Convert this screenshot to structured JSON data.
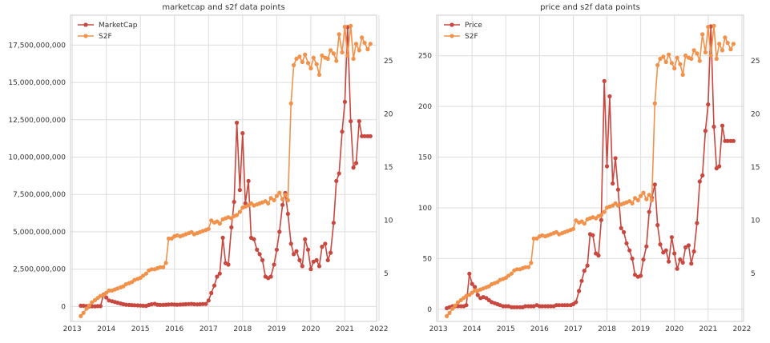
{
  "chart_data": [
    {
      "type": "line",
      "title": "marketcap and s2f data points",
      "xlabel": "",
      "ylabel": "",
      "x_ticks": [
        "2013",
        "2014",
        "2015",
        "2016",
        "2017",
        "2018",
        "2019",
        "2020",
        "2021",
        "2022"
      ],
      "y_ticks": [
        "0",
        "2,500,000,000",
        "5,000,000,000",
        "7,500,000,000",
        "10,000,000,000",
        "12,500,000,000",
        "15,000,000,000",
        "17,500,000,000"
      ],
      "y2_ticks": [
        "5",
        "10",
        "15",
        "20",
        "25"
      ],
      "xlim": [
        2012.95,
        2021.93
      ],
      "ylim": [
        -1000000000,
        19500000000
      ],
      "y2lim": [
        0.5,
        29.3
      ],
      "grid": true,
      "legend": "top-left",
      "series": [
        {
          "name": "MarketCap",
          "axis": "left",
          "color": "#c8473f",
          "x": [
            2013.25,
            2013.33,
            2013.42,
            2013.5,
            2013.58,
            2013.67,
            2013.75,
            2013.83,
            2013.92,
            2014.0,
            2014.08,
            2014.17,
            2014.25,
            2014.33,
            2014.42,
            2014.5,
            2014.58,
            2014.67,
            2014.75,
            2014.83,
            2014.92,
            2015.0,
            2015.08,
            2015.17,
            2015.25,
            2015.33,
            2015.42,
            2015.5,
            2015.58,
            2015.67,
            2015.75,
            2015.83,
            2015.92,
            2016.0,
            2016.08,
            2016.17,
            2016.25,
            2016.33,
            2016.42,
            2016.5,
            2016.58,
            2016.67,
            2016.75,
            2016.83,
            2016.92,
            2017.0,
            2017.08,
            2017.17,
            2017.25,
            2017.33,
            2017.42,
            2017.5,
            2017.58,
            2017.67,
            2017.75,
            2017.83,
            2017.92,
            2018.0,
            2018.08,
            2018.17,
            2018.25,
            2018.33,
            2018.42,
            2018.5,
            2018.58,
            2018.67,
            2018.75,
            2018.83,
            2018.92,
            2019.0,
            2019.08,
            2019.17,
            2019.25,
            2019.33,
            2019.42,
            2019.5,
            2019.58,
            2019.67,
            2019.75,
            2019.83,
            2019.92,
            2020.0,
            2020.08,
            2020.17,
            2020.25,
            2020.33,
            2020.42,
            2020.5,
            2020.58,
            2020.67,
            2020.75,
            2020.83,
            2020.92,
            2021.0,
            2021.08,
            2021.17,
            2021.25,
            2021.33,
            2021.42,
            2021.5,
            2021.58,
            2021.67,
            2021.75
          ],
          "y": [
            50000000,
            50000000,
            30000000,
            10000000,
            10000000,
            10000000,
            20000000,
            20000000,
            800000000,
            600000000,
            400000000,
            350000000,
            300000000,
            250000000,
            200000000,
            150000000,
            120000000,
            100000000,
            90000000,
            80000000,
            70000000,
            60000000,
            50000000,
            40000000,
            100000000,
            150000000,
            180000000,
            120000000,
            100000000,
            110000000,
            120000000,
            130000000,
            140000000,
            130000000,
            120000000,
            130000000,
            140000000,
            150000000,
            160000000,
            170000000,
            150000000,
            140000000,
            150000000,
            160000000,
            170000000,
            400000000,
            900000000,
            1400000000,
            2000000000,
            2200000000,
            4600000000,
            2900000000,
            2800000000,
            5300000000,
            7000000000,
            12300000000,
            7800000000,
            11600000000,
            6900000000,
            8400000000,
            4600000000,
            4500000000,
            3800000000,
            3500000000,
            3100000000,
            2000000000,
            1900000000,
            2000000000,
            2800000000,
            3800000000,
            5000000000,
            6800000000,
            7600000000,
            6200000000,
            4200000000,
            3500000000,
            3700000000,
            3100000000,
            2700000000,
            4500000000,
            3800000000,
            2500000000,
            3000000000,
            3100000000,
            2700000000,
            4000000000,
            4200000000,
            3100000000,
            3600000000,
            5600000000,
            8400000000,
            8900000000,
            11700000000,
            13700000000,
            18700000000,
            12400000000,
            9300000000,
            9600000000,
            12400000000,
            11400000000,
            11400000000,
            11400000000,
            11400000000
          ],
          "values_note": ""
        },
        {
          "name": "S2F",
          "axis": "right",
          "color": "#f2914a",
          "x": [
            2013.25,
            2013.33,
            2013.42,
            2013.5,
            2013.58,
            2013.67,
            2013.75,
            2013.83,
            2013.92,
            2014.0,
            2014.08,
            2014.17,
            2014.25,
            2014.33,
            2014.42,
            2014.5,
            2014.58,
            2014.67,
            2014.75,
            2014.83,
            2014.92,
            2015.0,
            2015.08,
            2015.17,
            2015.25,
            2015.33,
            2015.42,
            2015.5,
            2015.58,
            2015.67,
            2015.75,
            2015.83,
            2015.92,
            2016.0,
            2016.08,
            2016.17,
            2016.25,
            2016.33,
            2016.42,
            2016.5,
            2016.58,
            2016.67,
            2016.75,
            2016.83,
            2016.92,
            2017.0,
            2017.08,
            2017.17,
            2017.25,
            2017.33,
            2017.42,
            2017.5,
            2017.58,
            2017.67,
            2017.75,
            2017.83,
            2017.92,
            2018.0,
            2018.08,
            2018.17,
            2018.25,
            2018.33,
            2018.42,
            2018.5,
            2018.58,
            2018.67,
            2018.75,
            2018.83,
            2018.92,
            2019.0,
            2019.08,
            2019.17,
            2019.25,
            2019.33,
            2019.42,
            2019.5,
            2019.58,
            2019.67,
            2019.75,
            2019.83,
            2019.92,
            2020.0,
            2020.08,
            2020.17,
            2020.25,
            2020.33,
            2020.42,
            2020.5,
            2020.58,
            2020.67,
            2020.75,
            2020.83,
            2020.92,
            2021.0,
            2021.08,
            2021.17,
            2021.25,
            2021.33,
            2021.42,
            2021.5,
            2021.58,
            2021.67,
            2021.75
          ],
          "y": [
            1.0,
            1.3,
            1.7,
            2.0,
            2.3,
            2.5,
            2.7,
            2.9,
            3.0,
            3.2,
            3.4,
            3.4,
            3.5,
            3.6,
            3.7,
            3.8,
            4.0,
            4.1,
            4.2,
            4.4,
            4.5,
            4.6,
            4.8,
            5.0,
            5.3,
            5.4,
            5.4,
            5.5,
            5.6,
            5.6,
            6.0,
            8.3,
            8.3,
            8.5,
            8.6,
            8.5,
            8.6,
            8.7,
            8.8,
            8.9,
            8.7,
            8.8,
            8.9,
            9.0,
            9.1,
            9.2,
            10.0,
            9.8,
            9.9,
            9.7,
            10.1,
            10.2,
            10.3,
            10.2,
            10.4,
            10.5,
            10.8,
            11.2,
            11.3,
            11.4,
            11.6,
            11.4,
            11.5,
            11.6,
            11.7,
            11.8,
            11.6,
            12.1,
            11.9,
            12.3,
            12.6,
            12.0,
            12.4,
            11.9,
            21.0,
            24.6,
            25.2,
            25.4,
            24.9,
            25.6,
            24.8,
            24.3,
            25.3,
            24.7,
            23.7,
            25.5,
            25.3,
            25.2,
            26.0,
            25.7,
            25.0,
            27.5,
            25.8,
            28.2,
            25.5,
            28.3,
            25.2,
            26.6,
            26.0,
            27.2,
            26.7,
            26.1,
            26.6
          ],
          "values_note": ""
        }
      ]
    },
    {
      "type": "line",
      "title": "price and s2f data points",
      "xlabel": "",
      "ylabel": "",
      "x_ticks": [
        "2013",
        "2014",
        "2015",
        "2016",
        "2017",
        "2018",
        "2019",
        "2020",
        "2021",
        "2022"
      ],
      "y_ticks": [
        "0",
        "50",
        "100",
        "150",
        "200",
        "250"
      ],
      "y2_ticks": [
        "5",
        "10",
        "15",
        "20",
        "25"
      ],
      "xlim": [
        2012.95,
        2022.05
      ],
      "ylim": [
        -12,
        290
      ],
      "y2lim": [
        0.5,
        29.3
      ],
      "grid": true,
      "legend": "top-left",
      "series": [
        {
          "name": "Price",
          "axis": "left",
          "color": "#c8473f",
          "x": [
            2013.25,
            2013.33,
            2013.42,
            2013.5,
            2013.58,
            2013.67,
            2013.75,
            2013.83,
            2013.92,
            2014.0,
            2014.08,
            2014.17,
            2014.25,
            2014.33,
            2014.42,
            2014.5,
            2014.58,
            2014.67,
            2014.75,
            2014.83,
            2014.92,
            2015.0,
            2015.08,
            2015.17,
            2015.25,
            2015.33,
            2015.42,
            2015.5,
            2015.58,
            2015.67,
            2015.75,
            2015.83,
            2015.92,
            2016.0,
            2016.08,
            2016.17,
            2016.25,
            2016.33,
            2016.42,
            2016.5,
            2016.58,
            2016.67,
            2016.75,
            2016.83,
            2016.92,
            2017.0,
            2017.08,
            2017.17,
            2017.25,
            2017.33,
            2017.42,
            2017.5,
            2017.58,
            2017.67,
            2017.75,
            2017.83,
            2017.92,
            2018.0,
            2018.08,
            2018.17,
            2018.25,
            2018.33,
            2018.42,
            2018.5,
            2018.58,
            2018.67,
            2018.75,
            2018.83,
            2018.92,
            2019.0,
            2019.08,
            2019.17,
            2019.25,
            2019.33,
            2019.42,
            2019.5,
            2019.58,
            2019.67,
            2019.75,
            2019.83,
            2019.92,
            2020.0,
            2020.08,
            2020.17,
            2020.25,
            2020.33,
            2020.42,
            2020.5,
            2020.58,
            2020.67,
            2020.75,
            2020.83,
            2020.92,
            2021.0,
            2021.08,
            2021.17,
            2021.25,
            2021.33,
            2021.42,
            2021.5,
            2021.58,
            2021.67,
            2021.75
          ],
          "y": [
            1,
            2,
            3,
            3,
            3,
            3,
            3,
            4,
            35,
            25,
            22,
            14,
            11,
            12,
            11,
            9,
            7,
            6,
            5,
            4,
            3,
            3,
            3,
            2,
            2,
            2,
            2,
            2,
            3,
            3,
            3,
            3,
            4,
            3,
            3,
            3,
            3,
            3,
            3,
            4,
            4,
            4,
            4,
            4,
            4,
            5,
            7,
            18,
            28,
            38,
            43,
            74,
            73,
            55,
            53,
            88,
            225,
            141,
            210,
            124,
            149,
            118,
            80,
            76,
            65,
            58,
            50,
            34,
            32,
            33,
            49,
            62,
            96,
            110,
            123,
            83,
            64,
            56,
            58,
            47,
            71,
            55,
            40,
            49,
            46,
            61,
            63,
            45,
            57,
            85,
            126,
            132,
            176,
            202,
            279,
            180,
            139,
            141,
            181,
            166,
            166,
            166,
            166
          ],
          "values_note": ""
        },
        {
          "name": "S2F",
          "axis": "right",
          "color": "#f2914a",
          "x": [
            2013.25,
            2013.33,
            2013.42,
            2013.5,
            2013.58,
            2013.67,
            2013.75,
            2013.83,
            2013.92,
            2014.0,
            2014.08,
            2014.17,
            2014.25,
            2014.33,
            2014.42,
            2014.5,
            2014.58,
            2014.67,
            2014.75,
            2014.83,
            2014.92,
            2015.0,
            2015.08,
            2015.17,
            2015.25,
            2015.33,
            2015.42,
            2015.5,
            2015.58,
            2015.67,
            2015.75,
            2015.83,
            2015.92,
            2016.0,
            2016.08,
            2016.17,
            2016.25,
            2016.33,
            2016.42,
            2016.5,
            2016.58,
            2016.67,
            2016.75,
            2016.83,
            2016.92,
            2017.0,
            2017.08,
            2017.17,
            2017.25,
            2017.33,
            2017.42,
            2017.5,
            2017.58,
            2017.67,
            2017.75,
            2017.83,
            2017.92,
            2018.0,
            2018.08,
            2018.17,
            2018.25,
            2018.33,
            2018.42,
            2018.5,
            2018.58,
            2018.67,
            2018.75,
            2018.83,
            2018.92,
            2019.0,
            2019.08,
            2019.17,
            2019.25,
            2019.33,
            2019.42,
            2019.5,
            2019.58,
            2019.67,
            2019.75,
            2019.83,
            2019.92,
            2020.0,
            2020.08,
            2020.17,
            2020.25,
            2020.33,
            2020.42,
            2020.5,
            2020.58,
            2020.67,
            2020.75,
            2020.83,
            2020.92,
            2021.0,
            2021.08,
            2021.17,
            2021.25,
            2021.33,
            2021.42,
            2021.5,
            2021.58,
            2021.67,
            2021.75
          ],
          "y": [
            1.0,
            1.3,
            1.7,
            2.0,
            2.3,
            2.5,
            2.7,
            2.9,
            3.0,
            3.2,
            3.4,
            3.4,
            3.5,
            3.6,
            3.7,
            3.8,
            4.0,
            4.1,
            4.2,
            4.4,
            4.5,
            4.6,
            4.8,
            5.0,
            5.3,
            5.4,
            5.4,
            5.5,
            5.6,
            5.6,
            6.0,
            8.3,
            8.3,
            8.5,
            8.6,
            8.5,
            8.6,
            8.7,
            8.8,
            8.9,
            8.7,
            8.8,
            8.9,
            9.0,
            9.1,
            9.2,
            10.0,
            9.8,
            9.9,
            9.7,
            10.1,
            10.2,
            10.3,
            10.2,
            10.4,
            10.5,
            10.8,
            11.2,
            11.3,
            11.4,
            11.6,
            11.4,
            11.5,
            11.6,
            11.7,
            11.8,
            11.6,
            12.1,
            11.9,
            12.3,
            12.6,
            12.0,
            12.4,
            11.9,
            21.0,
            24.6,
            25.2,
            25.4,
            24.9,
            25.6,
            24.8,
            24.3,
            25.3,
            24.7,
            23.7,
            25.5,
            25.3,
            25.2,
            26.0,
            25.7,
            25.0,
            27.5,
            25.8,
            28.2,
            25.5,
            28.3,
            25.2,
            26.6,
            26.0,
            27.2,
            26.7,
            26.1,
            26.6
          ],
          "values_note": ""
        }
      ]
    }
  ]
}
